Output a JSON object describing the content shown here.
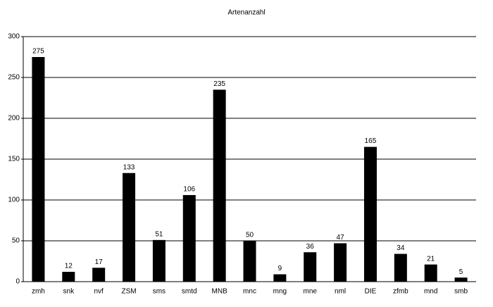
{
  "chart_data": {
    "type": "bar",
    "title": "Artenanzahl",
    "categories": [
      "zmh",
      "snk",
      "nvf",
      "ZSM",
      "sms",
      "smtd",
      "MNB",
      "mnc",
      "mng",
      "mne",
      "nml",
      "DIE",
      "zfmb",
      "mnd",
      "smb"
    ],
    "values": [
      275,
      12,
      17,
      133,
      51,
      106,
      235,
      50,
      9,
      36,
      47,
      165,
      34,
      21,
      5
    ],
    "color": "#000000",
    "ylim": [
      0,
      300
    ],
    "yticks": [
      0,
      50,
      100,
      150,
      200,
      250,
      300
    ],
    "grid": true
  }
}
